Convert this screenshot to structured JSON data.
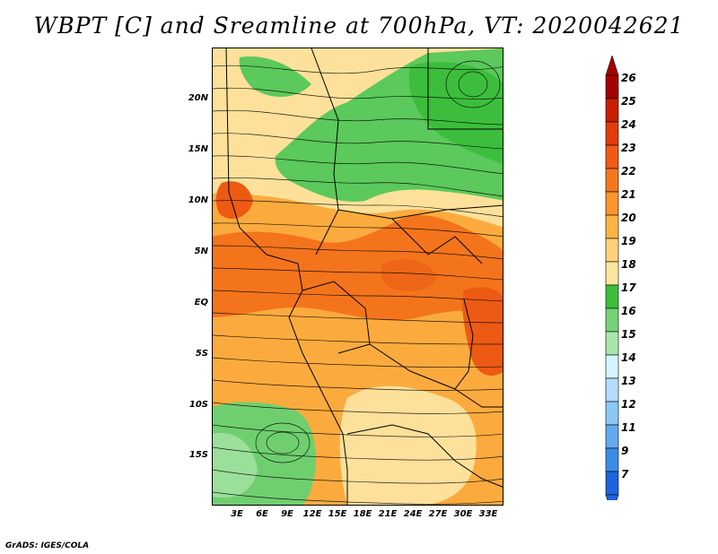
{
  "title": "WBPT [C] and Sreamline at 700hPa, VT: 2020042621",
  "credit": "GrADS: IGES/COLA",
  "map": {
    "lat_labels": [
      "20N",
      "15N",
      "10N",
      "5N",
      "EQ",
      "5S",
      "10S",
      "15S"
    ],
    "lon_labels": [
      "3E",
      "6E",
      "9E",
      "12E",
      "15E",
      "18E",
      "21E",
      "24E",
      "27E",
      "30E",
      "33E"
    ]
  },
  "colorbar": {
    "labels": [
      "26",
      "25",
      "24",
      "23",
      "22",
      "21",
      "20",
      "19",
      "18",
      "17",
      "16",
      "15",
      "14",
      "13",
      "12",
      "11",
      "9",
      "7"
    ],
    "colors": [
      "#a50000",
      "#c81e00",
      "#e13c0a",
      "#f05a14",
      "#f5781e",
      "#fa962d",
      "#fcb446",
      "#fed27a",
      "#fde6a0",
      "#3cbe3c",
      "#78d278",
      "#aae6aa",
      "#d2f5ff",
      "#b4dcff",
      "#8cc8f5",
      "#64aaf0",
      "#3c8ce6",
      "#1e64dc"
    ]
  }
}
